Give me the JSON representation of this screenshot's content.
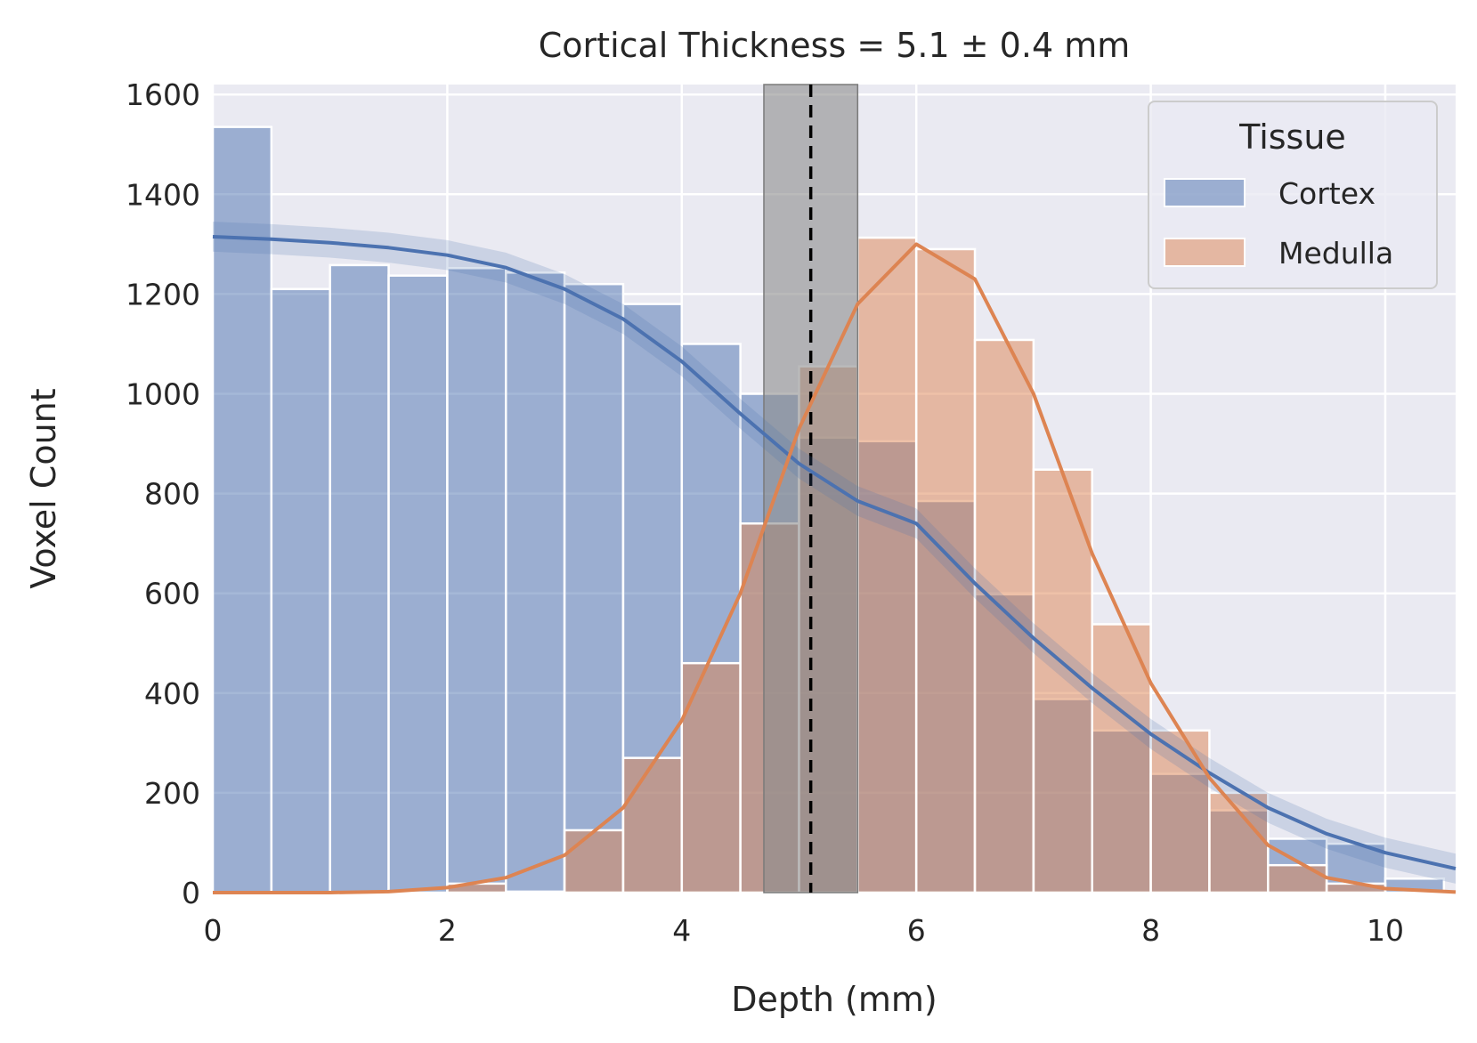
{
  "chart_data": {
    "type": "histogram",
    "title": "Cortical Thickness = 5.1 ± 0.4 mm",
    "xlabel": "Depth (mm)",
    "ylabel": "Voxel Count",
    "xlim": [
      0,
      10.6
    ],
    "ylim": [
      0,
      1620
    ],
    "xticks": [
      0,
      2,
      4,
      6,
      8,
      10
    ],
    "yticks": [
      0,
      200,
      400,
      600,
      800,
      1000,
      1200,
      1400,
      1600
    ],
    "grid": true,
    "bin_width": 0.5,
    "bin_starts": [
      0,
      0.5,
      1,
      1.5,
      2,
      2.5,
      3,
      3.5,
      4,
      4.5,
      5,
      5.5,
      6,
      6.5,
      7,
      7.5,
      8,
      8.5,
      9,
      9.5,
      10
    ],
    "legend": {
      "title": "Tissue",
      "position": "upper right"
    },
    "series": [
      {
        "name": "Cortex",
        "color": "#4c72b0",
        "values": [
          1535,
          1210,
          1258,
          1237,
          1252,
          1243,
          1220,
          1180,
          1100,
          1000,
          912,
          905,
          785,
          598,
          388,
          325,
          238,
          165,
          108,
          98,
          28
        ],
        "kde": {
          "x": [
            0,
            0.5,
            1,
            1.5,
            2,
            2.5,
            3,
            3.5,
            4,
            4.5,
            5,
            5.5,
            6,
            6.5,
            7,
            7.5,
            8,
            8.5,
            9,
            9.5,
            10,
            10.6
          ],
          "y": [
            1315,
            1310,
            1303,
            1293,
            1278,
            1253,
            1210,
            1150,
            1065,
            960,
            860,
            785,
            740,
            620,
            510,
            410,
            318,
            240,
            170,
            118,
            80,
            48
          ],
          "band": 30
        }
      },
      {
        "name": "Medulla",
        "color": "#dd8452",
        "values": [
          0,
          0,
          0,
          0,
          18,
          2,
          125,
          270,
          460,
          740,
          1055,
          1313,
          1290,
          1108,
          848,
          538,
          325,
          200,
          55,
          18,
          0
        ],
        "kde": {
          "x": [
            0,
            1,
            1.5,
            2,
            2.5,
            3,
            3.5,
            4,
            4.5,
            5,
            5.5,
            6,
            6.5,
            7,
            7.5,
            8,
            8.5,
            9,
            9.5,
            10,
            10.6
          ],
          "y": [
            0,
            0,
            2,
            10,
            30,
            75,
            170,
            345,
            600,
            930,
            1180,
            1300,
            1230,
            1000,
            680,
            420,
            230,
            95,
            30,
            8,
            1
          ]
        }
      }
    ],
    "thickness": {
      "mean": 5.1,
      "std": 0.4,
      "band_color": "#8c8c8c"
    }
  }
}
